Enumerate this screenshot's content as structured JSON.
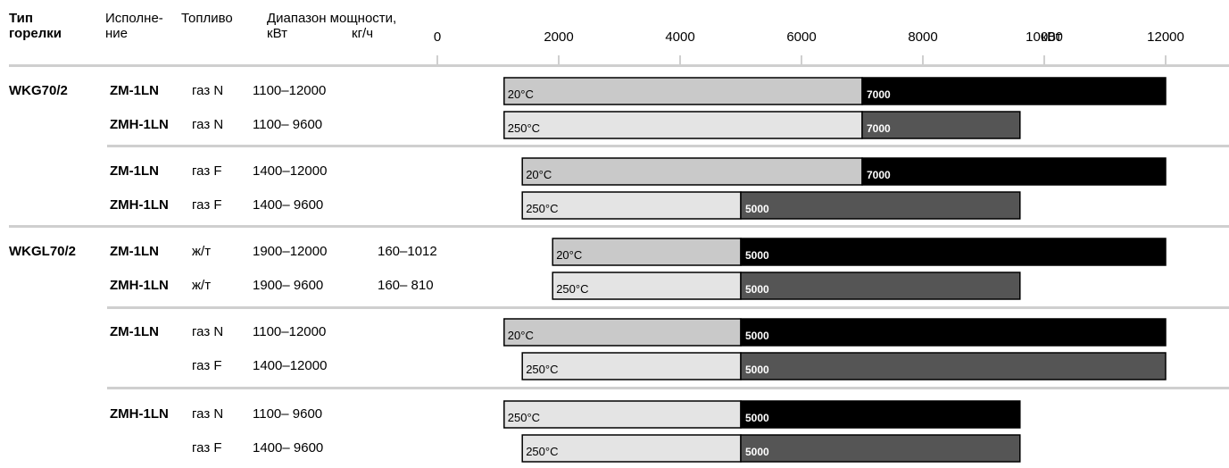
{
  "header": {
    "col_type": [
      "Тип",
      "горелки"
    ],
    "col_version": [
      "Исполне-",
      "ние"
    ],
    "col_fuel": "Топливо",
    "col_range": "Диапазон мощности,",
    "unit_kw": "кВт",
    "unit_kgh": "кг/ч"
  },
  "chart_data": {
    "type": "bar",
    "subtype": "horizontal-range",
    "axis": {
      "unit": "кВт",
      "ticks": [
        0,
        2000,
        4000,
        6000,
        8000,
        10000,
        12000
      ],
      "range": [
        0,
        12000
      ]
    },
    "colors": {
      "low_light": "#c9c9c9",
      "low_lighter": "#e4e4e4",
      "high_black": "#000000",
      "high_dark": "#555555",
      "rule": "#cfcfcf"
    },
    "rows": [
      {
        "burner": "WKG70/2",
        "version": "ZM-1LN",
        "fuel": "газ N",
        "range_kw": "1100–12000",
        "range_kgh": "",
        "start": 1100,
        "split": 7000,
        "end": 12000,
        "temp": "20°C",
        "split_label": "7000",
        "low_color": "low_light",
        "high_color": "high_black"
      },
      {
        "burner": "",
        "version": "ZMH-1LN",
        "fuel": "газ N",
        "range_kw": "1100– 9600",
        "range_kgh": "",
        "start": 1100,
        "split": 7000,
        "end": 9600,
        "temp": "250°C",
        "split_label": "7000",
        "low_color": "low_lighter",
        "high_color": "high_dark"
      },
      {
        "burner": "",
        "version": "ZM-1LN",
        "fuel": "газ F",
        "range_kw": "1400–12000",
        "range_kgh": "",
        "start": 1400,
        "split": 7000,
        "end": 12000,
        "temp": "20°C",
        "split_label": "7000",
        "low_color": "low_light",
        "high_color": "high_black"
      },
      {
        "burner": "",
        "version": "ZMH-1LN",
        "fuel": "газ F",
        "range_kw": "1400– 9600",
        "range_kgh": "",
        "start": 1400,
        "split": 5000,
        "end": 9600,
        "temp": "250°C",
        "split_label": "5000",
        "low_color": "low_lighter",
        "high_color": "high_dark"
      },
      {
        "burner": "WKGL70/2",
        "version": "ZM-1LN",
        "fuel": "ж/т",
        "range_kw": "1900–12000",
        "range_kgh": "160–1012",
        "start": 1900,
        "split": 5000,
        "end": 12000,
        "temp": "20°C",
        "split_label": "5000",
        "low_color": "low_light",
        "high_color": "high_black"
      },
      {
        "burner": "",
        "version": "ZMH-1LN",
        "fuel": "ж/т",
        "range_kw": "1900– 9600",
        "range_kgh": "160– 810",
        "start": 1900,
        "split": 5000,
        "end": 9600,
        "temp": "250°C",
        "split_label": "5000",
        "low_color": "low_lighter",
        "high_color": "high_dark"
      },
      {
        "burner": "",
        "version": "ZM-1LN",
        "fuel": "газ N",
        "range_kw": "1100–12000",
        "range_kgh": "",
        "start": 1100,
        "split": 5000,
        "end": 12000,
        "temp": "20°C",
        "split_label": "5000",
        "low_color": "low_light",
        "high_color": "high_black"
      },
      {
        "burner": "",
        "version": "",
        "fuel": "газ F",
        "range_kw": "1400–12000",
        "range_kgh": "",
        "start": 1400,
        "split": 5000,
        "end": 12000,
        "temp": "250°C",
        "split_label": "5000",
        "low_color": "low_lighter",
        "high_color": "high_dark"
      },
      {
        "burner": "",
        "version": "ZMH-1LN",
        "fuel": "газ N",
        "range_kw": "1100– 9600",
        "range_kgh": "",
        "start": 1100,
        "split": 5000,
        "end": 9600,
        "temp": "250°C",
        "split_label": "5000",
        "low_color": "low_lighter",
        "high_color": "high_black"
      },
      {
        "burner": "",
        "version": "",
        "fuel": "газ F",
        "range_kw": "1400– 9600",
        "range_kgh": "",
        "start": 1400,
        "split": 5000,
        "end": 9600,
        "temp": "250°C",
        "split_label": "5000",
        "low_color": "low_lighter",
        "high_color": "high_dark"
      }
    ]
  }
}
